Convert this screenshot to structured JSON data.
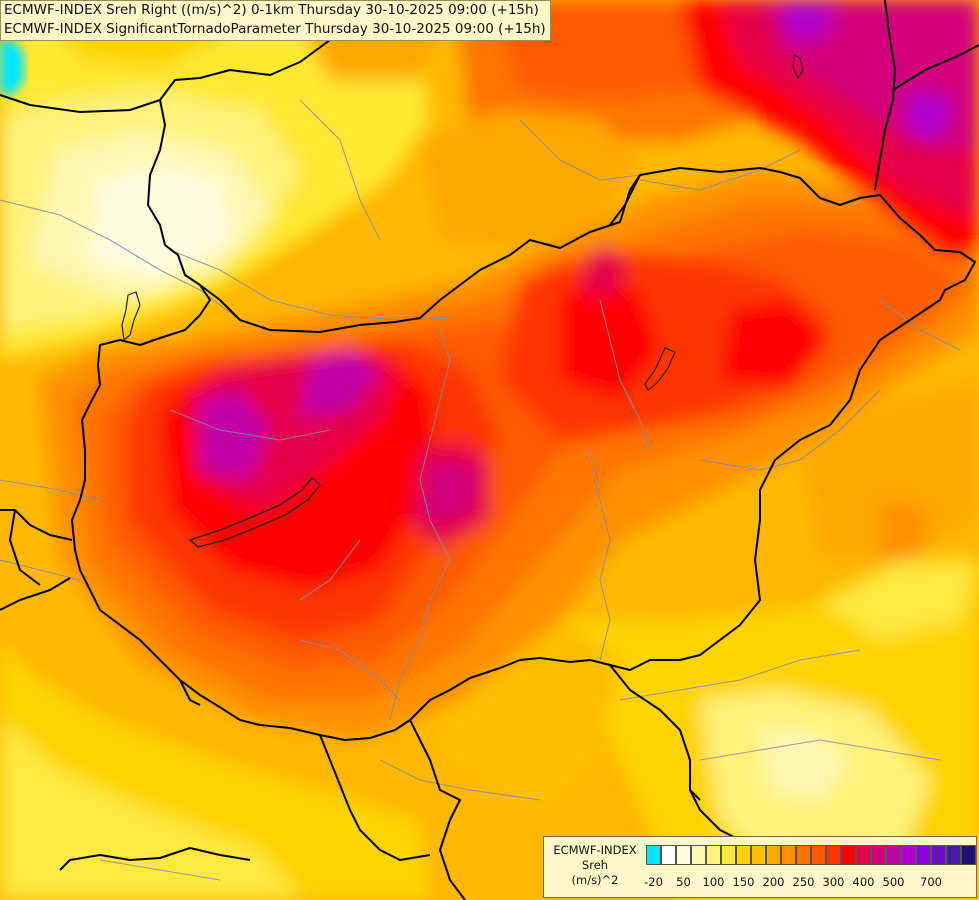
{
  "title_lines": [
    "ECMWF-INDEX Sreh Right ((m/s)^2) 0-1km Thursday 30-10-2025 09:00 (+15h)",
    "ECMWF-INDEX SignificantTornadoParameter Thursday 30-10-2025 09:00 (+15h)"
  ],
  "legend": {
    "title": [
      "ECMWF-INDEX",
      "Sreh",
      "(m/s)^2"
    ],
    "colors": [
      "#00e6ff",
      "#ffffff",
      "#fffce0",
      "#fff8b4",
      "#fff27c",
      "#ffe840",
      "#ffd400",
      "#ffbe00",
      "#ffa800",
      "#ff9000",
      "#ff7400",
      "#ff5a00",
      "#ff3400",
      "#ff0000",
      "#e6004a",
      "#d2007c",
      "#c200a8",
      "#b000d0",
      "#8c00e0",
      "#6a10c0",
      "#4a1aa0",
      "#20107a"
    ],
    "ticks": [
      {
        "label": "-20",
        "slot": 0.5
      },
      {
        "label": "50",
        "slot": 2.5
      },
      {
        "label": "100",
        "slot": 4.5
      },
      {
        "label": "150",
        "slot": 6.5
      },
      {
        "label": "200",
        "slot": 8.5
      },
      {
        "label": "250",
        "slot": 10.5
      },
      {
        "label": "300",
        "slot": 12.5
      },
      {
        "label": "400",
        "slot": 14.5
      },
      {
        "label": "500",
        "slot": 16.5
      },
      {
        "label": "700",
        "slot": 19
      }
    ]
  }
}
